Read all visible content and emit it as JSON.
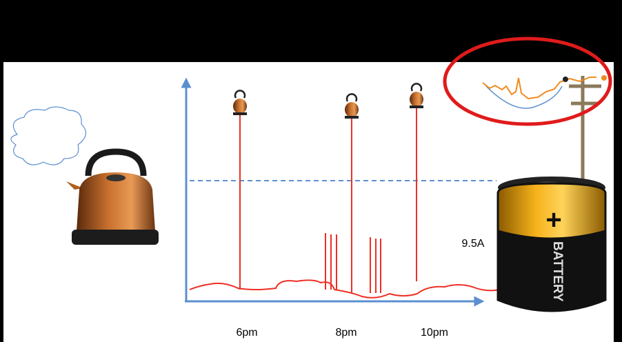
{
  "time_labels": [
    "6pm",
    "8pm",
    "10pm"
  ],
  "threshold_label": "9.5A",
  "battery": {
    "label": "BATTERY",
    "symbol": "+"
  }
}
